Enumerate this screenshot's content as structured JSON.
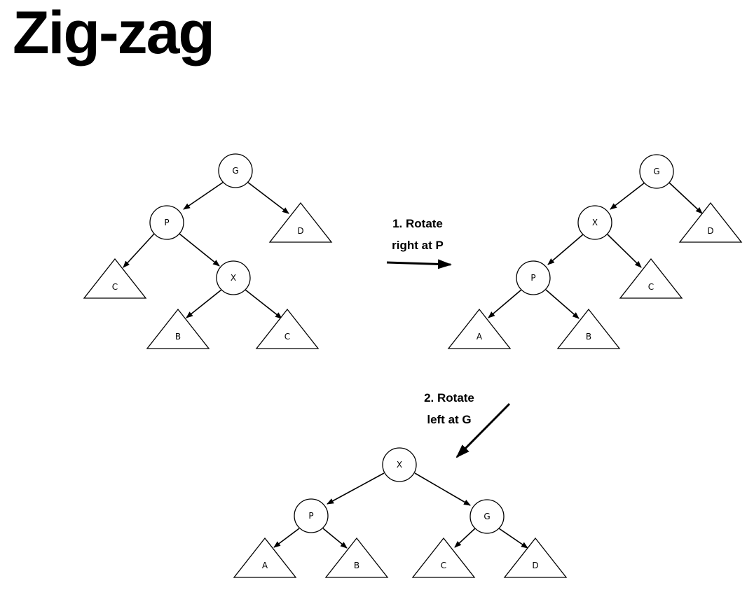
{
  "title": "Zig-zag",
  "steps": [
    {
      "line1": "1. Rotate",
      "line2": "right at P"
    },
    {
      "line1": "2. Rotate",
      "line2": "left at G"
    }
  ],
  "trees": {
    "before": {
      "nodes": [
        "G",
        "P",
        "X"
      ],
      "subtrees": [
        "D",
        "C",
        "B",
        "C"
      ]
    },
    "after_first": {
      "nodes": [
        "G",
        "X",
        "P"
      ],
      "subtrees": [
        "D",
        "C",
        "A",
        "B"
      ]
    },
    "final": {
      "nodes": [
        "X",
        "P",
        "G"
      ],
      "subtrees": [
        "A",
        "B",
        "C",
        "D"
      ]
    }
  }
}
